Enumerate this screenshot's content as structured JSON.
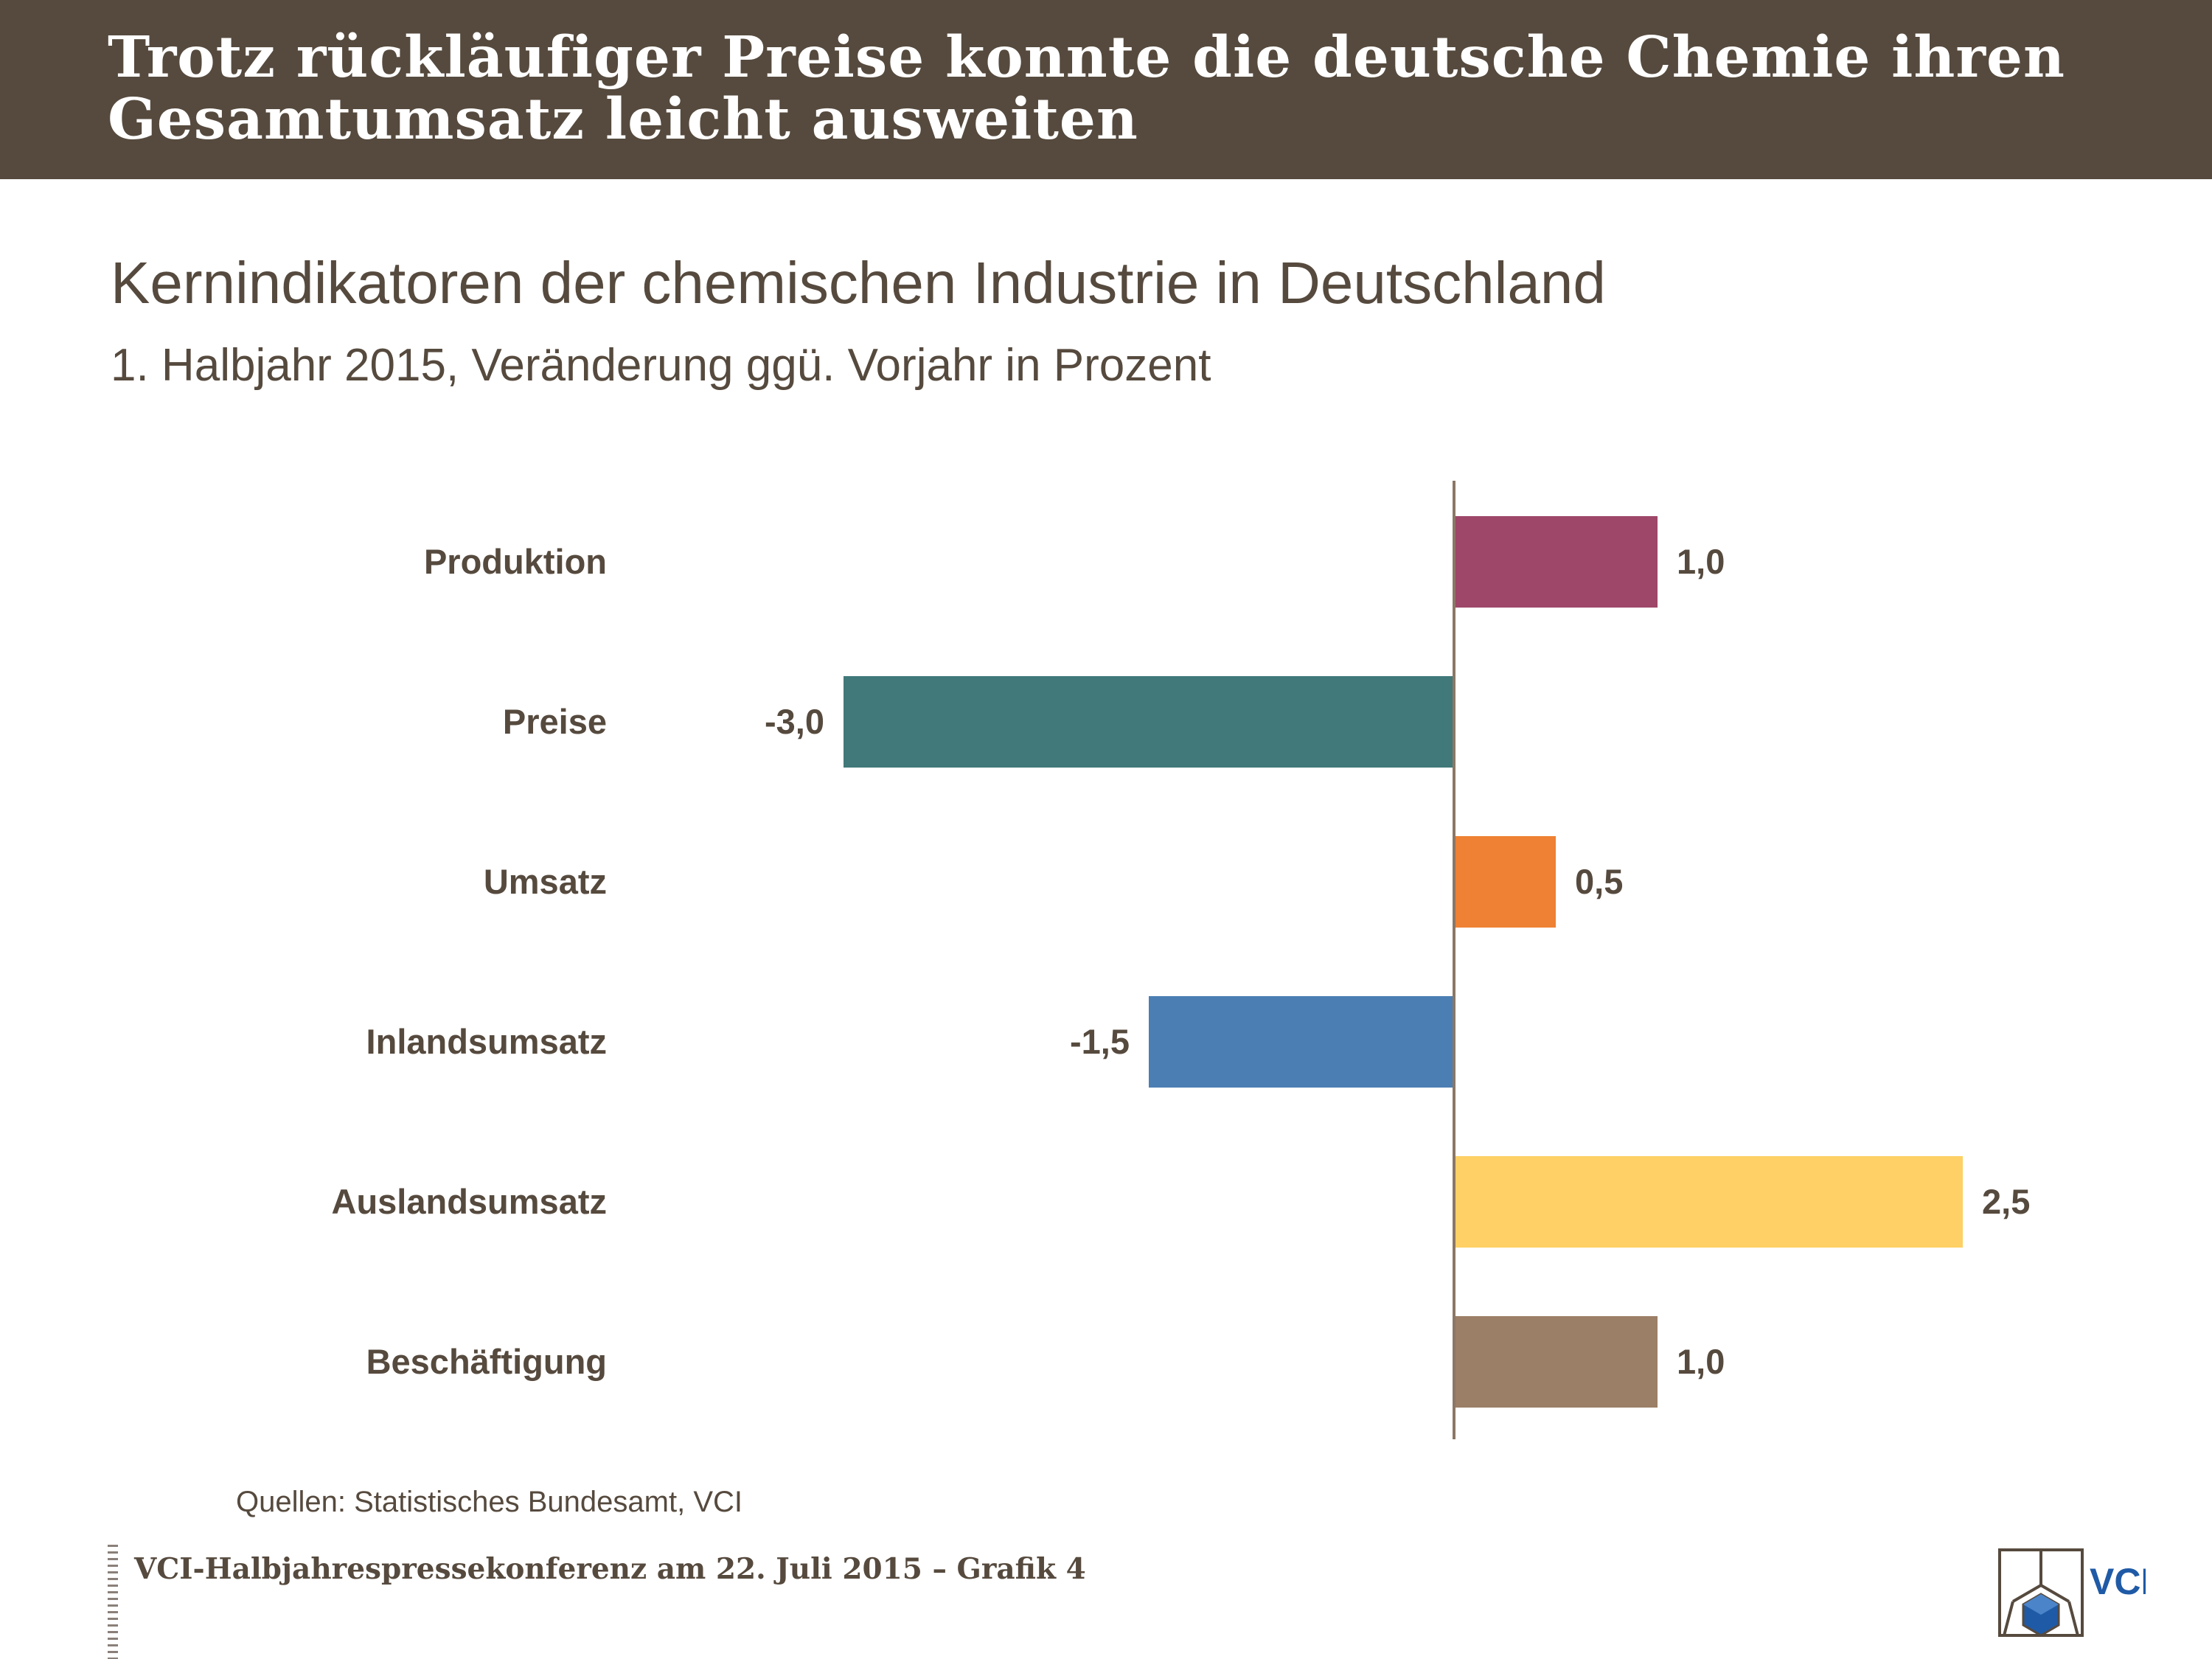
{
  "header": {
    "line1": "Trotz rückläufiger Preise konnte die deutsche Chemie ihren",
    "line2": "Gesamtumsatz leicht ausweiten"
  },
  "chart_data": {
    "type": "bar",
    "orientation": "horizontal",
    "title": "Kernindikatoren der chemischen Industrie in Deutschland",
    "subtitle": "1. Halbjahr 2015, Veränderung ggü. Vorjahr in Prozent",
    "categories": [
      "Produktion",
      "Preise",
      "Umsatz",
      "Inlandsumsatz",
      "Auslandsumsatz",
      "Beschäftigung"
    ],
    "values": [
      1.0,
      -3.0,
      0.5,
      -1.5,
      2.5,
      1.0
    ],
    "value_labels": [
      "1,0",
      "-3,0",
      "0,5",
      "-1,5",
      "2,5",
      "1,0"
    ],
    "colors": [
      "#9e4768",
      "#41797a",
      "#ee8133",
      "#4b7fb3",
      "#fed065",
      "#9b7f66"
    ],
    "xlim": [
      -3.0,
      2.5
    ],
    "grid": false,
    "legend": "none"
  },
  "source": "Quellen: Statistisches Bundesamt, VCI",
  "footer": "VCI-Halbjahrespressekonferenz am 22. Juli 2015 – Grafik 4",
  "logo_text": "VCI"
}
